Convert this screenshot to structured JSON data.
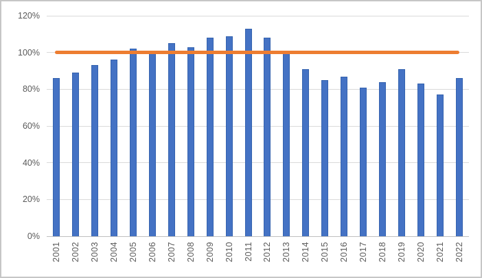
{
  "chart_data": {
    "type": "bar",
    "title": "",
    "xlabel": "",
    "ylabel": "",
    "categories": [
      "2001",
      "2002",
      "2003",
      "2004",
      "2005",
      "2006",
      "2007",
      "2008",
      "2009",
      "2010",
      "2011",
      "2012",
      "2013",
      "2014",
      "2015",
      "2016",
      "2017",
      "2018",
      "2019",
      "2020",
      "2021",
      "2022"
    ],
    "series": [
      {
        "name": "annual-percentage-bars",
        "type": "bar",
        "values": [
          86,
          89,
          93,
          96,
          102,
          100,
          105,
          103,
          108,
          109,
          113,
          108,
          100,
          91,
          85,
          87,
          81,
          84,
          91,
          83,
          77,
          86
        ]
      },
      {
        "name": "reference-line",
        "type": "line",
        "value": 100
      }
    ],
    "ylim": [
      0,
      120
    ],
    "ytick_step": 20,
    "ytick_labels": [
      "0%",
      "20%",
      "40%",
      "60%",
      "80%",
      "100%",
      "120%"
    ],
    "grid": true,
    "legend": "none"
  },
  "colors": {
    "bar_fill": "#4472c4",
    "bar_border": "#3462ae",
    "reference_line": "#ed7d31",
    "gridline": "#d9d9d9",
    "axis_line": "#bfbfbf",
    "tick_label": "#595959",
    "chart_border": "#c6c6c6",
    "background": "#ffffff"
  }
}
